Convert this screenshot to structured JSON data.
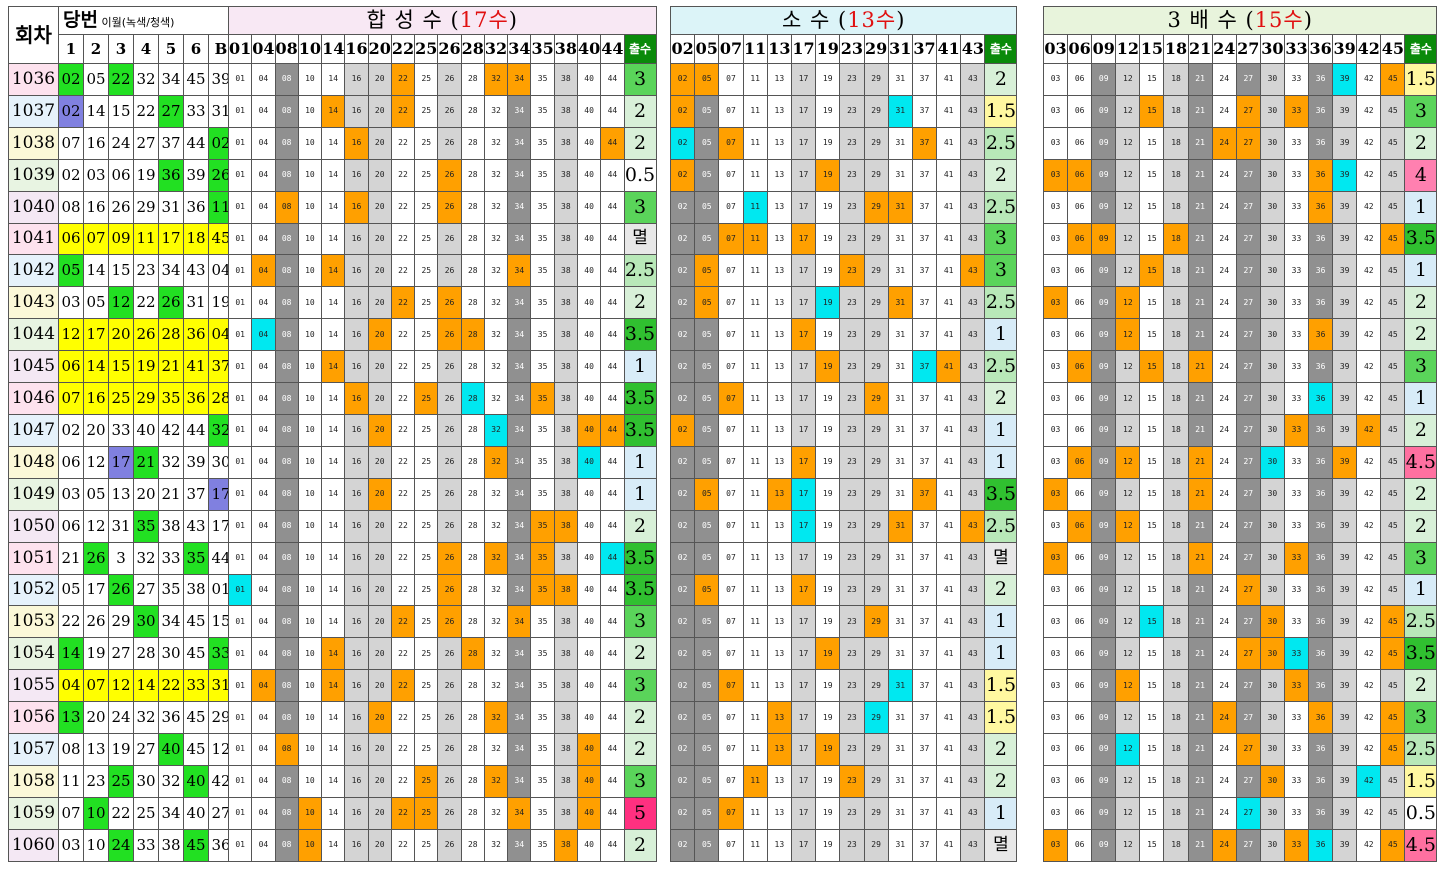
{
  "colors": {
    "ywin": "#ffff00",
    "gwin": "#22e022",
    "bwin": "#8080e0",
    "hit": "#ffa000",
    "cyan": "#00e8f0",
    "dark": "#909090",
    "light": "#d4d4d4",
    "white": "#ffffff",
    "title1": "#f8e8f4",
    "title2": "#dcf4f8",
    "title3": "#e8f4dc",
    "rn": [
      "#fde2ee",
      "#e6f2fb",
      "#fbf8d8",
      "#e8f4e2"
    ]
  },
  "header": {
    "round_label": "회차",
    "win_label": "당번",
    "win_note": "이월(녹색/청색)",
    "col_labels": [
      "1",
      "2",
      "3",
      "4",
      "5",
      "6",
      "B"
    ],
    "sections": [
      {
        "title_pre": "합 성  수 (",
        "title_num": "17수",
        "title_post": ")",
        "nums": [
          "01",
          "04",
          "08",
          "10",
          "14",
          "16",
          "20",
          "22",
          "25",
          "26",
          "28",
          "32",
          "34",
          "35",
          "38",
          "40",
          "44"
        ],
        "count_label": "출수"
      },
      {
        "title_pre": "소    수 (",
        "title_num": "13수",
        "title_post": ")",
        "nums": [
          "02",
          "05",
          "07",
          "11",
          "13",
          "17",
          "19",
          "23",
          "29",
          "31",
          "37",
          "41",
          "43"
        ],
        "count_label": "출수"
      },
      {
        "title_pre": "3  배  수 (",
        "title_num": "15수",
        "title_post": ")",
        "nums": [
          "03",
          "06",
          "09",
          "12",
          "15",
          "18",
          "21",
          "24",
          "27",
          "30",
          "33",
          "36",
          "39",
          "42",
          "45"
        ],
        "count_label": "출수"
      }
    ]
  },
  "rows": [
    {
      "r": "1036",
      "w": [
        "02",
        "05",
        "22",
        "32",
        "34",
        "45",
        "39"
      ],
      "c": [
        "3",
        "2",
        "1.5"
      ]
    },
    {
      "r": "1037",
      "w": [
        "02",
        "14",
        "15",
        "22",
        "27",
        "33",
        "31"
      ],
      "c": [
        "2",
        "1.5",
        "3"
      ]
    },
    {
      "r": "1038",
      "w": [
        "07",
        "16",
        "24",
        "27",
        "37",
        "44",
        "02"
      ],
      "c": [
        "2",
        "2.5",
        "2"
      ]
    },
    {
      "r": "1039",
      "w": [
        "02",
        "03",
        "06",
        "19",
        "36",
        "39",
        "26"
      ],
      "c": [
        "0.5",
        "2",
        "4"
      ]
    },
    {
      "r": "1040",
      "w": [
        "08",
        "16",
        "26",
        "29",
        "31",
        "36",
        "11"
      ],
      "c": [
        "3",
        "2.5",
        "1"
      ]
    },
    {
      "r": "1041",
      "w": [
        "06",
        "07",
        "09",
        "11",
        "17",
        "18",
        "45"
      ],
      "c": [
        "멸",
        "3",
        "3.5"
      ]
    },
    {
      "r": "1042",
      "w": [
        "05",
        "14",
        "15",
        "23",
        "34",
        "43",
        "04"
      ],
      "c": [
        "2.5",
        "3",
        "1"
      ]
    },
    {
      "r": "1043",
      "w": [
        "03",
        "05",
        "12",
        "22",
        "26",
        "31",
        "19"
      ],
      "c": [
        "2",
        "2.5",
        "2"
      ]
    },
    {
      "r": "1044",
      "w": [
        "12",
        "17",
        "20",
        "26",
        "28",
        "36",
        "04"
      ],
      "c": [
        "3.5",
        "1",
        "2"
      ]
    },
    {
      "r": "1045",
      "w": [
        "06",
        "14",
        "15",
        "19",
        "21",
        "41",
        "37"
      ],
      "c": [
        "1",
        "2.5",
        "3"
      ]
    },
    {
      "r": "1046",
      "w": [
        "07",
        "16",
        "25",
        "29",
        "35",
        "36",
        "28"
      ],
      "c": [
        "3.5",
        "2",
        "1"
      ]
    },
    {
      "r": "1047",
      "w": [
        "02",
        "20",
        "33",
        "40",
        "42",
        "44",
        "32"
      ],
      "c": [
        "3.5",
        "1",
        "2"
      ]
    },
    {
      "r": "1048",
      "w": [
        "06",
        "12",
        "17",
        "21",
        "32",
        "39",
        "30"
      ],
      "c": [
        "1",
        "1",
        "4.5"
      ]
    },
    {
      "r": "1049",
      "w": [
        "03",
        "05",
        "13",
        "20",
        "21",
        "37",
        "17"
      ],
      "c": [
        "1",
        "3.5",
        "2"
      ]
    },
    {
      "r": "1050",
      "w": [
        "06",
        "12",
        "31",
        "35",
        "38",
        "43",
        "17"
      ],
      "c": [
        "2",
        "2.5",
        "2"
      ]
    },
    {
      "r": "1051",
      "w": [
        "21",
        "26",
        "3",
        "32",
        "33",
        "35",
        "44"
      ],
      "c": [
        "3.5",
        "멸",
        "3"
      ]
    },
    {
      "r": "1052",
      "w": [
        "05",
        "17",
        "26",
        "27",
        "35",
        "38",
        "01"
      ],
      "c": [
        "3.5",
        "2",
        "1"
      ]
    },
    {
      "r": "1053",
      "w": [
        "22",
        "26",
        "29",
        "30",
        "34",
        "45",
        "15"
      ],
      "c": [
        "3",
        "1",
        "2.5"
      ]
    },
    {
      "r": "1054",
      "w": [
        "14",
        "19",
        "27",
        "28",
        "30",
        "45",
        "33"
      ],
      "c": [
        "2",
        "1",
        "3.5"
      ]
    },
    {
      "r": "1055",
      "w": [
        "04",
        "07",
        "12",
        "14",
        "22",
        "33",
        "31"
      ],
      "c": [
        "3",
        "1.5",
        "2"
      ]
    },
    {
      "r": "1056",
      "w": [
        "13",
        "20",
        "24",
        "32",
        "36",
        "45",
        "29"
      ],
      "c": [
        "2",
        "1.5",
        "3"
      ]
    },
    {
      "r": "1057",
      "w": [
        "08",
        "13",
        "19",
        "27",
        "40",
        "45",
        "12"
      ],
      "c": [
        "2",
        "2",
        "2.5"
      ]
    },
    {
      "r": "1058",
      "w": [
        "11",
        "23",
        "25",
        "30",
        "32",
        "40",
        "42"
      ],
      "c": [
        "3",
        "2",
        "1.5"
      ]
    },
    {
      "r": "1059",
      "w": [
        "07",
        "10",
        "22",
        "25",
        "34",
        "40",
        "27"
      ],
      "c": [
        "5",
        "1",
        "0.5"
      ]
    },
    {
      "r": "1060",
      "w": [
        "03",
        "10",
        "24",
        "33",
        "38",
        "45",
        "36"
      ],
      "c": [
        "2",
        "멸",
        "4.5"
      ]
    }
  ],
  "win_colors": {
    "1036": {
      "0": "g",
      "2": "g"
    },
    "1037": {
      "0": "b",
      "4": "g"
    },
    "1038": {
      "6": "g"
    },
    "1039": {
      "4": "g",
      "6": "g"
    },
    "1040": {
      "6": "g"
    },
    "1041": {
      "0": "y",
      "1": "y",
      "2": "y",
      "3": "y",
      "4": "y",
      "5": "y",
      "6": "y"
    },
    "1042": {
      "0": "g"
    },
    "1043": {
      "2": "g",
      "4": "g"
    },
    "1044": {
      "0": "y",
      "1": "y",
      "2": "y",
      "3": "y",
      "4": "y",
      "5": "y",
      "6": "y"
    },
    "1045": {
      "0": "y",
      "1": "y",
      "2": "y",
      "3": "y",
      "4": "y",
      "5": "y",
      "6": "y"
    },
    "1046": {
      "0": "y",
      "1": "y",
      "2": "y",
      "3": "y",
      "4": "y",
      "5": "y",
      "6": "y"
    },
    "1047": {
      "6": "g"
    },
    "1048": {
      "2": "b",
      "3": "g"
    },
    "1049": {
      "6": "b"
    },
    "1050": {
      "3": "g"
    },
    "1051": {
      "1": "g",
      "5": "g"
    },
    "1052": {
      "2": "g"
    },
    "1053": {
      "3": "g"
    },
    "1054": {
      "0": "g",
      "6": "g"
    },
    "1055": {
      "0": "y",
      "1": "y",
      "2": "y",
      "3": "y",
      "4": "y",
      "5": "y",
      "6": "y"
    },
    "1056": {
      "0": "g"
    },
    "1057": {
      "4": "g"
    },
    "1058": {
      "2": "g",
      "5": "g"
    },
    "1059": {
      "1": "g"
    },
    "1060": {
      "2": "g",
      "5": "g"
    }
  },
  "count_colors": {
    "3.5": "#30c030",
    "3": "#5ad45a",
    "2.5": "#b8e8b8",
    "2": "#d8f0d8",
    "1.5": "#fff8a0",
    "1": "#d8ecf8",
    "0.5": "#ffffff",
    "4": "#ff80b0",
    "4.5": "#ff70a0",
    "5": "#ff3080",
    "멸": "#e8e8e8"
  },
  "cyan_cells": [
    "1044:04",
    "1048:40",
    "1052:01",
    "1051:44",
    "1046:28",
    "1047:32",
    "1038:02",
    "1037:31",
    "1049:17",
    "1050:17",
    "1040:11",
    "1043:19",
    "1045:37",
    "1056:29",
    "1055:31",
    "1046:36",
    "1036:39",
    "1039:39",
    "1048:30",
    "1053:15",
    "1054:33",
    "1057:12",
    "1058:42",
    "1059:27",
    "1060:36"
  ]
}
